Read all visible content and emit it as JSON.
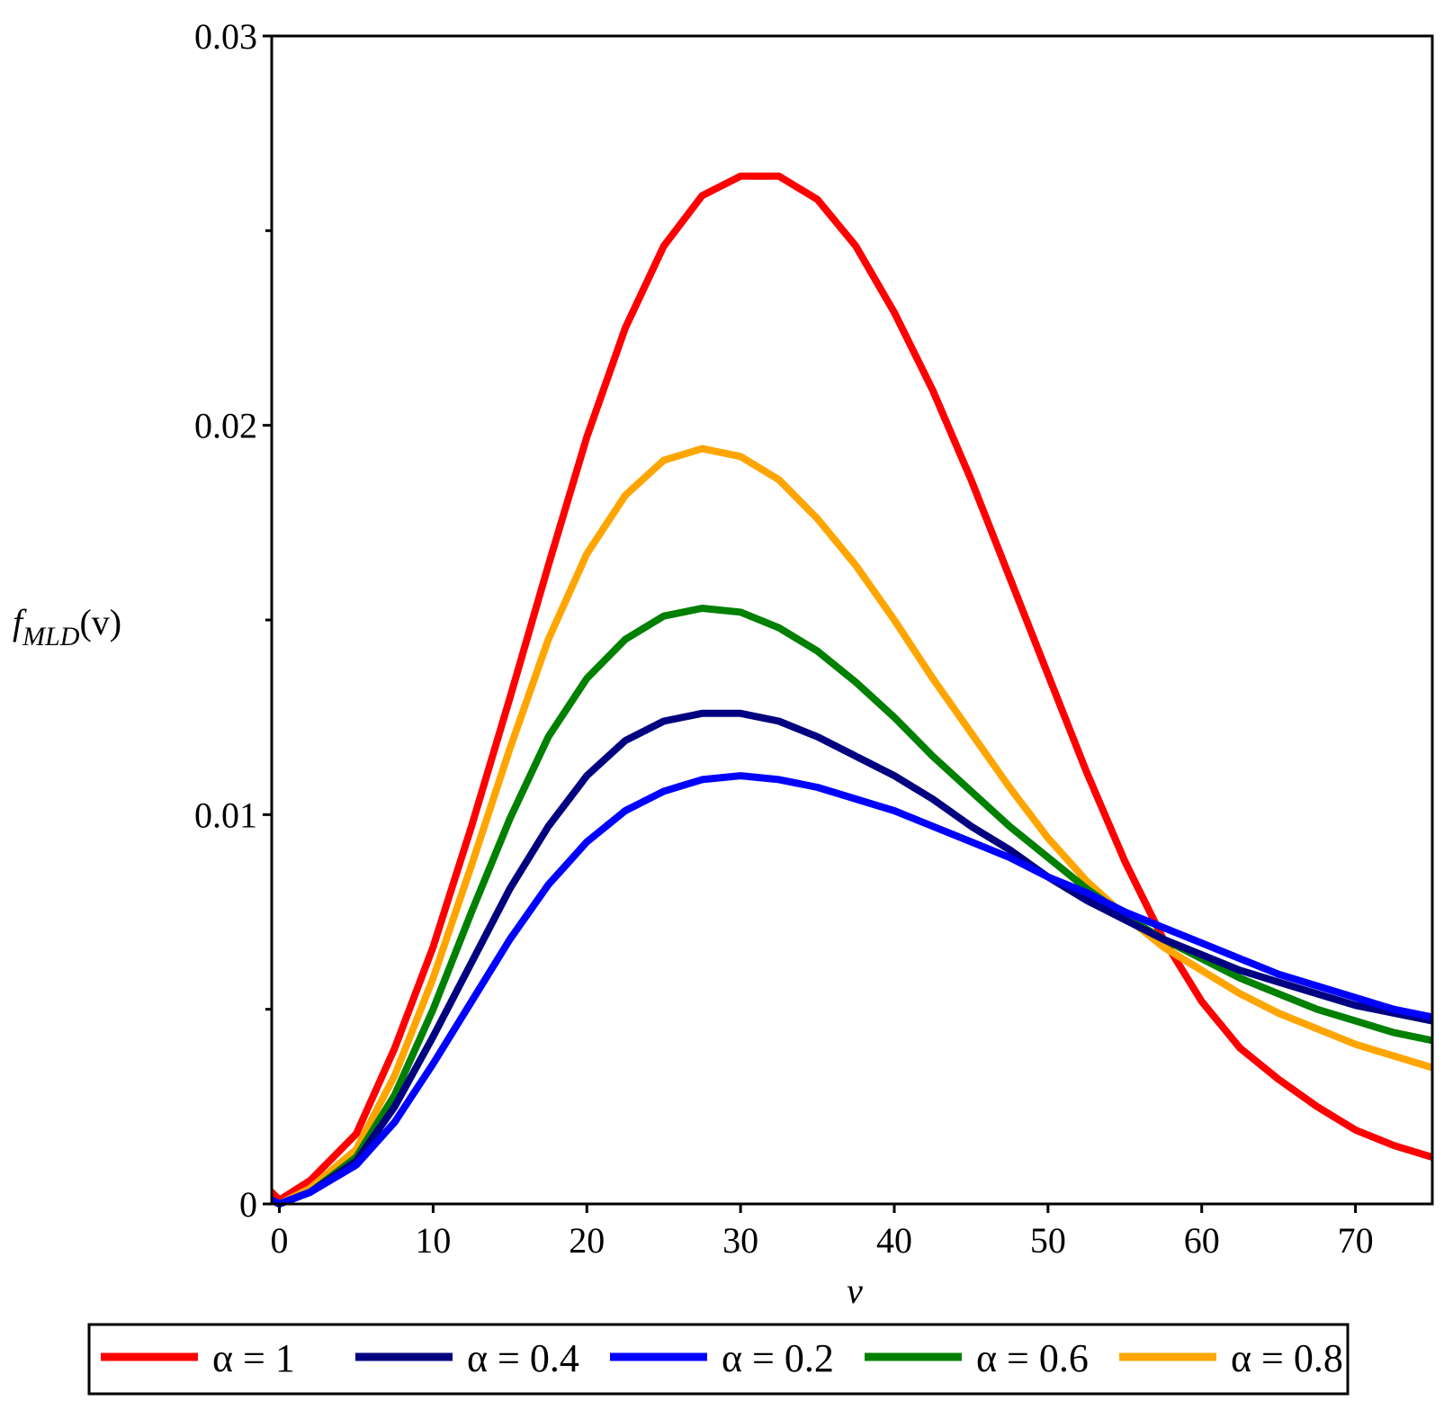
{
  "chart_data": {
    "type": "line",
    "title": "",
    "xlabel": "v",
    "ylabel": {
      "base": "f",
      "subscript": "MLD",
      "arg": "(v)"
    },
    "xlim": [
      -0.5,
      75
    ],
    "ylim": [
      0,
      0.03
    ],
    "x_ticks": [
      0,
      10,
      20,
      30,
      40,
      50,
      60,
      70
    ],
    "x_tick_labels": [
      "0",
      "10",
      "20",
      "30",
      "40",
      "50",
      "60",
      "70"
    ],
    "y_ticks": [
      0,
      0.01,
      0.02,
      0.03
    ],
    "y_tick_labels": [
      "0",
      "0.01",
      "0.02",
      "0.03"
    ],
    "y_minor_ticks": [
      0.005,
      0.015,
      0.025
    ],
    "grid": false,
    "legend_position": "bottom",
    "series": [
      {
        "name": "α = 1",
        "color": "#ff0000",
        "x": [
          -0.5,
          0,
          2,
          5,
          7.5,
          10,
          12.5,
          15,
          17.5,
          20,
          22.5,
          25,
          27.5,
          30,
          32.5,
          35,
          37.5,
          40,
          42.5,
          45,
          47.5,
          50,
          52.5,
          55,
          57.5,
          60,
          62.5,
          65,
          67.5,
          70,
          72.5,
          75
        ],
        "y": [
          0.0003,
          0.0001,
          0.0006,
          0.0018,
          0.004,
          0.0066,
          0.0097,
          0.013,
          0.0164,
          0.0197,
          0.0225,
          0.0246,
          0.0259,
          0.0264,
          0.0264,
          0.0258,
          0.0246,
          0.0229,
          0.0209,
          0.0186,
          0.0161,
          0.0136,
          0.0111,
          0.0088,
          0.0068,
          0.0052,
          0.004,
          0.0032,
          0.0025,
          0.0019,
          0.0015,
          0.0012
        ]
      },
      {
        "name": "α = 0.4",
        "color": "#000080",
        "x": [
          -0.5,
          0,
          2,
          5,
          7.5,
          10,
          12.5,
          15,
          17.5,
          20,
          22.5,
          25,
          27.5,
          30,
          32.5,
          35,
          37.5,
          40,
          42.5,
          45,
          47.5,
          50,
          52.5,
          55,
          57.5,
          60,
          62.5,
          65,
          67.5,
          70,
          72.5,
          75
        ],
        "y": [
          0.0001,
          0.0,
          0.0003,
          0.0011,
          0.0025,
          0.0043,
          0.0062,
          0.0081,
          0.0097,
          0.011,
          0.0119,
          0.0124,
          0.0126,
          0.0126,
          0.0124,
          0.012,
          0.0115,
          0.011,
          0.0104,
          0.0097,
          0.0091,
          0.0084,
          0.0078,
          0.0073,
          0.0068,
          0.0064,
          0.006,
          0.0057,
          0.0054,
          0.0051,
          0.0049,
          0.0047
        ]
      },
      {
        "name": "α = 0.2",
        "color": "#0000ff",
        "x": [
          -0.5,
          0,
          2,
          5,
          7.5,
          10,
          12.5,
          15,
          17.5,
          20,
          22.5,
          25,
          27.5,
          30,
          32.5,
          35,
          37.5,
          40,
          42.5,
          45,
          47.5,
          50,
          52.5,
          55,
          57.5,
          60,
          62.5,
          65,
          67.5,
          70,
          72.5,
          75
        ],
        "y": [
          0.0001,
          0.0,
          0.0003,
          0.001,
          0.0021,
          0.0036,
          0.0052,
          0.0068,
          0.0082,
          0.0093,
          0.0101,
          0.0106,
          0.0109,
          0.011,
          0.0109,
          0.0107,
          0.0104,
          0.0101,
          0.0097,
          0.0093,
          0.0089,
          0.0084,
          0.008,
          0.0075,
          0.0071,
          0.0067,
          0.0063,
          0.0059,
          0.0056,
          0.0053,
          0.005,
          0.0048
        ]
      },
      {
        "name": "α = 0.6",
        "color": "#008000",
        "x": [
          -0.5,
          0,
          2,
          5,
          7.5,
          10,
          12.5,
          15,
          17.5,
          20,
          22.5,
          25,
          27.5,
          30,
          32.5,
          35,
          37.5,
          40,
          42.5,
          45,
          47.5,
          50,
          52.5,
          55,
          57.5,
          60,
          62.5,
          65,
          67.5,
          70,
          72.5,
          75
        ],
        "y": [
          0.0001,
          0.0,
          0.0003,
          0.0012,
          0.0028,
          0.005,
          0.0075,
          0.0099,
          0.012,
          0.0135,
          0.0145,
          0.0151,
          0.0153,
          0.0152,
          0.0148,
          0.0142,
          0.0134,
          0.0125,
          0.0115,
          0.0106,
          0.0097,
          0.0089,
          0.0081,
          0.0074,
          0.0068,
          0.0063,
          0.0058,
          0.0054,
          0.005,
          0.0047,
          0.0044,
          0.0042
        ]
      },
      {
        "name": "α = 0.8",
        "color": "#ffa500",
        "x": [
          -0.5,
          0,
          2,
          5,
          7.5,
          10,
          12.5,
          15,
          17.5,
          20,
          22.5,
          25,
          27.5,
          30,
          32.5,
          35,
          37.5,
          40,
          42.5,
          45,
          47.5,
          50,
          52.5,
          55,
          57.5,
          60,
          62.5,
          65,
          67.5,
          70,
          72.5,
          75
        ],
        "y": [
          0.0001,
          0.0,
          0.0004,
          0.0014,
          0.0033,
          0.0058,
          0.0087,
          0.0117,
          0.0145,
          0.0167,
          0.0182,
          0.0191,
          0.0194,
          0.0192,
          0.0186,
          0.0176,
          0.0164,
          0.015,
          0.0135,
          0.0121,
          0.0107,
          0.0094,
          0.0083,
          0.0074,
          0.0066,
          0.006,
          0.0054,
          0.0049,
          0.0045,
          0.0041,
          0.0038,
          0.0035
        ]
      }
    ]
  },
  "legend": {
    "order": [
      0,
      1,
      2,
      3,
      4
    ]
  }
}
